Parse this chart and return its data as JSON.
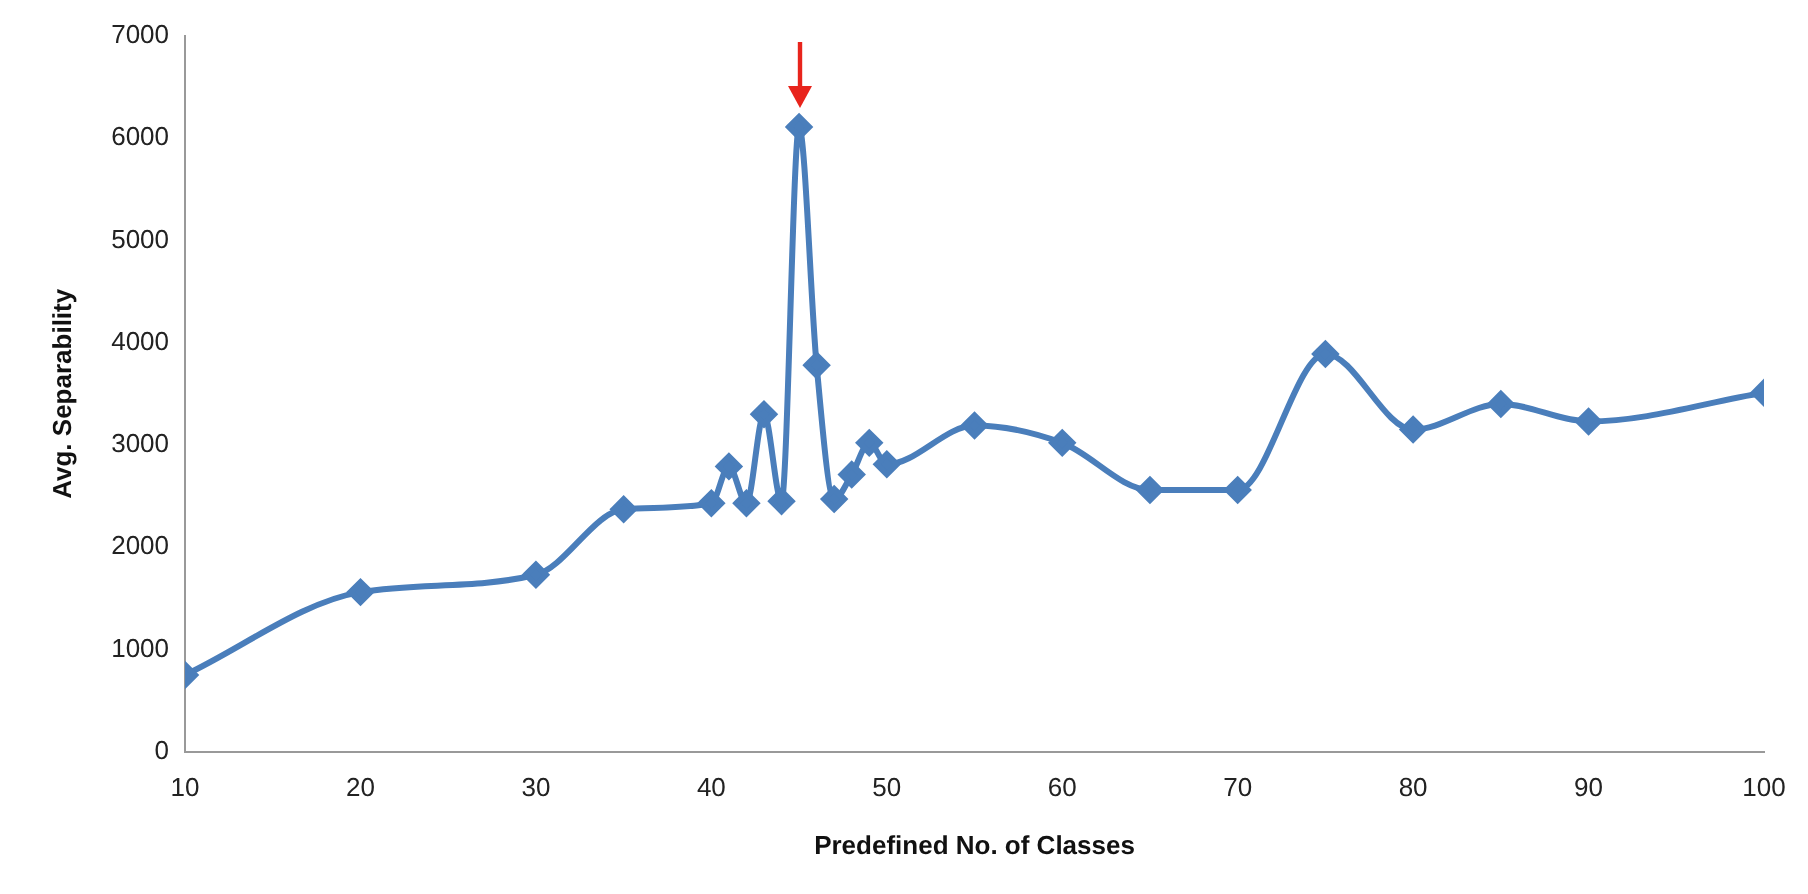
{
  "chart_data": {
    "type": "line",
    "xlabel": "Predefined No. of Classes",
    "ylabel": "Avg. Separability",
    "x": [
      10,
      20,
      30,
      35,
      40,
      41,
      42,
      43,
      44,
      45,
      46,
      47,
      48,
      49,
      50,
      55,
      60,
      65,
      70,
      75,
      80,
      85,
      90,
      100
    ],
    "series": [
      {
        "color": "#4a7ebb",
        "values": [
          750,
          1560,
          1730,
          2370,
          2430,
          2790,
          2430,
          3300,
          2450,
          6110,
          3780,
          2470,
          2710,
          3020,
          2810,
          3190,
          3020,
          2560,
          2560,
          3890,
          3150,
          3400,
          3230,
          3510
        ]
      }
    ],
    "xlim": [
      10,
      100
    ],
    "xticks": [
      10,
      20,
      30,
      40,
      50,
      60,
      70,
      80,
      90,
      100
    ],
    "ylim": [
      0,
      7000
    ],
    "yticks": [
      0,
      1000,
      2000,
      3000,
      4000,
      5000,
      6000,
      7000
    ],
    "grid": false,
    "legend": false,
    "marker": "diamond",
    "line_style": "solid"
  }
}
